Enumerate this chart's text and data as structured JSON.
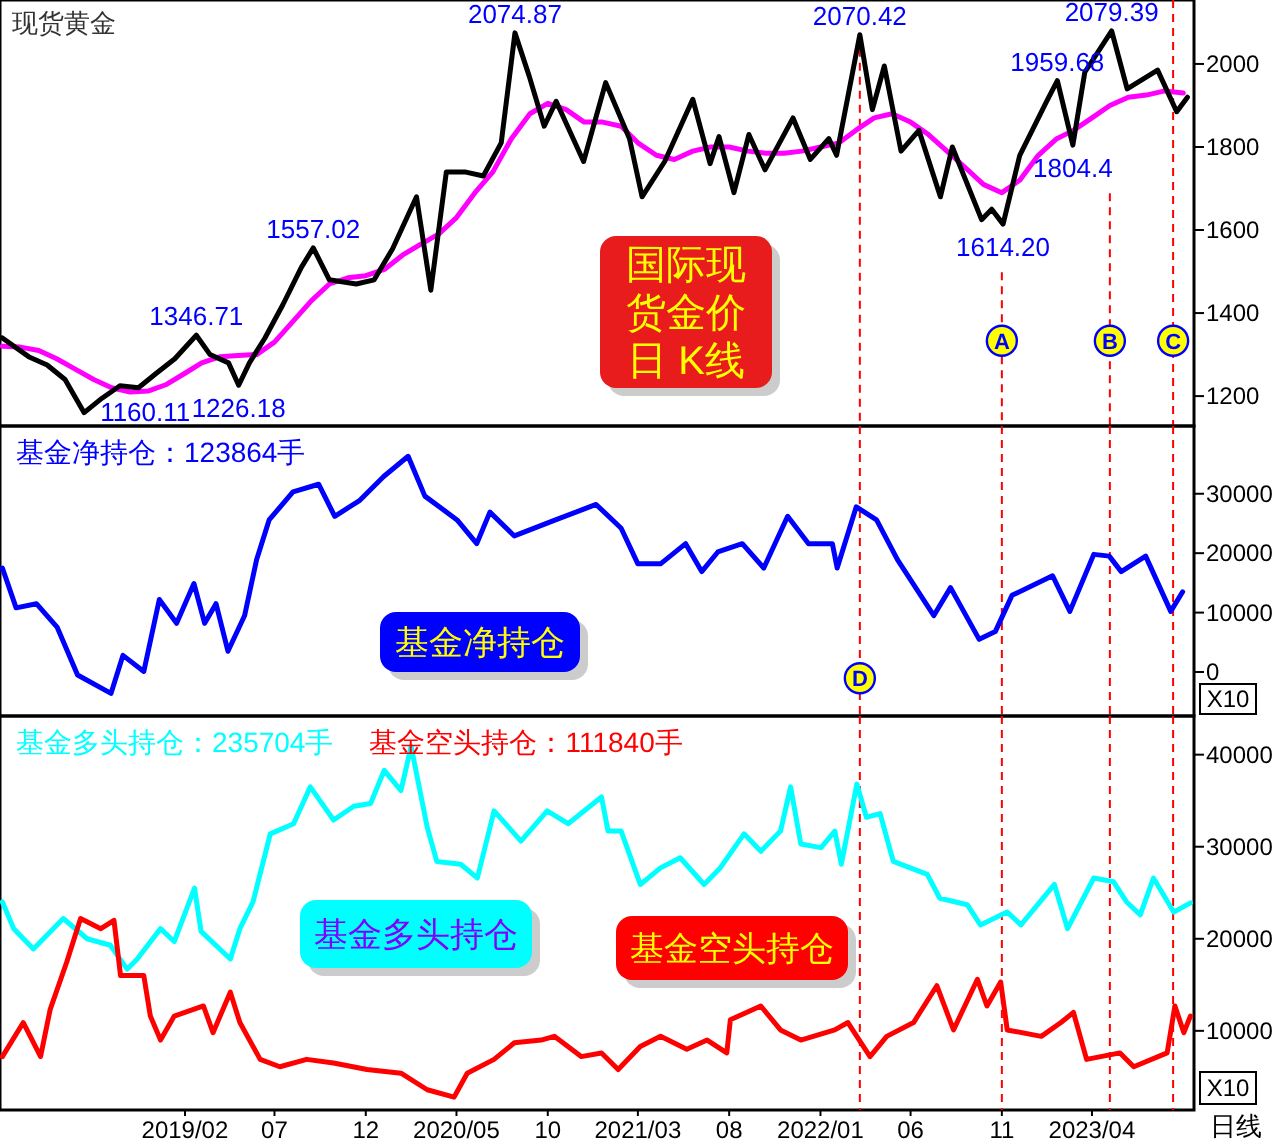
{
  "chart_data": [
    {
      "type": "line",
      "title": "现货黄金",
      "xlim": [
        "2018-03-28",
        "2023-09-19"
      ],
      "ylim": [
        1128,
        2154
      ],
      "yticks": [
        1200,
        1400,
        1600,
        1800,
        2000
      ],
      "tick_labels": "y",
      "marker": "none",
      "line_style": "solid",
      "series": [
        {
          "color": "#ff00ff",
          "x": [
            "2018-04",
            "2018-05",
            "2018-06",
            "2018-07",
            "2018-08",
            "2018-09",
            "2018-10",
            "2018-11",
            "2018-12",
            "2019-01",
            "2019-02",
            "2019-03",
            "2019-04",
            "2019-05",
            "2019-06",
            "2019-07",
            "2019-08",
            "2019-09",
            "2019-10",
            "2019-11",
            "2019-12",
            "2020-01",
            "2020-02",
            "2020-03",
            "2020-04",
            "2020-05",
            "2020-06",
            "2020-07",
            "2020-08",
            "2020-09",
            "2020-10",
            "2020-11",
            "2020-12",
            "2021-01",
            "2021-02",
            "2021-03",
            "2021-04",
            "2021-05",
            "2021-06",
            "2021-07",
            "2021-08",
            "2021-09",
            "2021-10",
            "2021-11",
            "2021-12",
            "2022-01",
            "2022-02",
            "2022-03",
            "2022-04",
            "2022-05",
            "2022-06",
            "2022-07",
            "2022-08",
            "2022-09",
            "2022-10",
            "2022-11",
            "2022-12",
            "2023-01",
            "2023-02",
            "2023-03",
            "2023-04",
            "2023-05",
            "2023-06",
            "2023-07",
            "2023-08",
            "2023-09"
          ],
          "values": [
            1320,
            1318,
            1310,
            1290,
            1265,
            1240,
            1220,
            1210,
            1212,
            1228,
            1255,
            1280,
            1295,
            1298,
            1300,
            1330,
            1380,
            1430,
            1470,
            1485,
            1490,
            1505,
            1540,
            1565,
            1590,
            1630,
            1690,
            1740,
            1820,
            1880,
            1905,
            1890,
            1860,
            1860,
            1850,
            1810,
            1780,
            1770,
            1790,
            1800,
            1800,
            1790,
            1785,
            1785,
            1790,
            1800,
            1810,
            1840,
            1870,
            1880,
            1860,
            1830,
            1790,
            1750,
            1710,
            1690,
            1720,
            1780,
            1820,
            1840,
            1870,
            1900,
            1920,
            1925,
            1935,
            1930
          ]
        },
        {
          "color": "#000000",
          "x": [
            "2018-04-01",
            "2018-05-15",
            "2018-06-15",
            "2018-07-15",
            "2018-08-16",
            "2018-09-15",
            "2018-10-15",
            "2018-11-15",
            "2018-12-15",
            "2019-01-15",
            "2019-02-20",
            "2019-03-15",
            "2019-04-15",
            "2019-05-02",
            "2019-05-20",
            "2019-06-15",
            "2019-07-15",
            "2019-08-15",
            "2019-09-04",
            "2019-10-01",
            "2019-11-15",
            "2019-12-15",
            "2020-01-15",
            "2020-02-24",
            "2020-03-19",
            "2020-04-14",
            "2020-05-15",
            "2020-06-15",
            "2020-07-15",
            "2020-08-07",
            "2020-08-31",
            "2020-09-25",
            "2020-10-15",
            "2020-11-30",
            "2021-01-06",
            "2021-02-15",
            "2021-03-08",
            "2021-04-15",
            "2021-06-01",
            "2021-06-30",
            "2021-07-15",
            "2021-08-09",
            "2021-09-03",
            "2021-09-30",
            "2021-11-16",
            "2021-12-15",
            "2022-01-15",
            "2022-01-28",
            "2022-03-08",
            "2022-03-29",
            "2022-04-18",
            "2022-05-16",
            "2022-06-15",
            "2022-07-21",
            "2022-08-10",
            "2022-09-28",
            "2022-10-15",
            "2022-11-03",
            "2022-12-01",
            "2023-01-15",
            "2023-02-02",
            "2023-02-28",
            "2023-03-20",
            "2023-05-04",
            "2023-05-30",
            "2023-07-20",
            "2023-08-21",
            "2023-09-08"
          ],
          "values": [
            1340,
            1295,
            1275,
            1240,
            1160.11,
            1195,
            1225,
            1220,
            1255,
            1290,
            1346.71,
            1300,
            1280,
            1226.18,
            1280,
            1340,
            1420,
            1510,
            1557.02,
            1480,
            1470,
            1480,
            1555,
            1680,
            1455,
            1740,
            1740,
            1730,
            1810,
            2074.87,
            1970,
            1850,
            1910,
            1765,
            1955,
            1820,
            1680,
            1765,
            1915,
            1760,
            1825,
            1690,
            1830,
            1745,
            1870,
            1770,
            1820,
            1780,
            2070.42,
            1890,
            1995,
            1790,
            1840,
            1680,
            1800,
            1625,
            1650,
            1614.2,
            1780,
            1910,
            1959.68,
            1804.4,
            1980,
            2079.39,
            1940,
            1985,
            1885,
            1920
          ]
        }
      ],
      "ref_lines": [
        {
          "axis": "x",
          "value": "2022-03-08",
          "color": "#ff0000",
          "line_style": "dashed"
        },
        {
          "axis": "x",
          "value": "2022-11-01",
          "label": "A",
          "color": "#ff0000",
          "line_style": "dashed"
        },
        {
          "axis": "x",
          "value": "2023-05-01",
          "label": "B",
          "color": "#ff0000",
          "line_style": "dashed"
        },
        {
          "axis": "x",
          "value": "2023-08-15",
          "label": "C",
          "color": "#ff0000",
          "line_style": "dashed"
        }
      ],
      "annotations": [
        {
          "text": "1160.11",
          "x": "2018-08-16",
          "y": 1160.11
        },
        {
          "text": "1346.71",
          "x": "2019-02-20",
          "y": 1346.71
        },
        {
          "text": "1226.18",
          "x": "2019-05-02",
          "y": 1226.18
        },
        {
          "text": "1557.02",
          "x": "2019-09-04",
          "y": 1557.02
        },
        {
          "text": "2074.87",
          "x": "2020-08-07",
          "y": 2074.87
        },
        {
          "text": "2070.42",
          "x": "2022-03-08",
          "y": 2070.42
        },
        {
          "text": "1614.20",
          "x": "2022-11-03",
          "y": 1614.2
        },
        {
          "text": "1959.68",
          "x": "2023-02-02",
          "y": 1959.68
        },
        {
          "text": "1804.4",
          "x": "2023-02-28",
          "y": 1804.4
        },
        {
          "text": "2079.39",
          "x": "2023-05-04",
          "y": 2079.39
        },
        "国际现货金价日 K线"
      ]
    },
    {
      "type": "line",
      "xlim": [
        "2018-03-28",
        "2023-09-19"
      ],
      "ylim": [
        -7400,
        41400
      ],
      "yticks": [
        0,
        10000,
        20000,
        30000
      ],
      "tick_labels": "y",
      "marker": "none",
      "line_style": "solid",
      "legend": "top left",
      "series": [
        {
          "name": "基金净持仓：123864手",
          "color": "#0000ff",
          "x": [
            "2018-04-01",
            "2018-04-24",
            "2018-05-28",
            "2018-07-02",
            "2018-08-05",
            "2018-09-30",
            "2018-10-20",
            "2018-11-24",
            "2018-12-20",
            "2019-01-18",
            "2019-02-16",
            "2019-03-06",
            "2019-03-25",
            "2019-04-14",
            "2019-05-12",
            "2019-06-01",
            "2019-06-22",
            "2019-08-01",
            "2019-09-13",
            "2019-10-10",
            "2019-11-21",
            "2019-12-31",
            "2020-02-10",
            "2020-03-09",
            "2020-05-02",
            "2020-06-04",
            "2020-06-26",
            "2020-08-06",
            "2020-10-14",
            "2020-12-21",
            "2021-02-01",
            "2021-03-01",
            "2021-04-08",
            "2021-05-20",
            "2021-06-16",
            "2021-07-13",
            "2021-08-23",
            "2021-09-28",
            "2021-11-07",
            "2021-12-12",
            "2022-01-21",
            "2022-01-29",
            "2022-03-02",
            "2022-04-05",
            "2022-05-10",
            "2022-07-10",
            "2022-08-07",
            "2022-09-24",
            "2022-10-21",
            "2022-11-18",
            "2023-01-25",
            "2023-02-23",
            "2023-04-04",
            "2023-04-30",
            "2023-05-20",
            "2023-06-30",
            "2023-08-11",
            "2023-08-31"
          ],
          "values": [
            17500,
            10800,
            11500,
            7500,
            -500,
            -3600,
            2800,
            100,
            12200,
            8200,
            14900,
            8200,
            11500,
            3500,
            9500,
            18900,
            25600,
            30300,
            31600,
            26200,
            28900,
            32900,
            36300,
            29600,
            25600,
            21600,
            26900,
            22900,
            25600,
            28200,
            24200,
            18200,
            18200,
            21600,
            16900,
            20200,
            21600,
            17500,
            26200,
            21600,
            21600,
            17500,
            27800,
            25600,
            18900,
            9500,
            14200,
            5500,
            6800,
            12900,
            16200,
            10200,
            19800,
            19500,
            16900,
            19500,
            10200,
            13500
          ]
        }
      ],
      "ref_lines": [
        {
          "axis": "x",
          "value": "2022-03-08",
          "label": "D",
          "color": "#ff0000",
          "line_style": "dashed"
        },
        {
          "axis": "x",
          "value": "2022-11-01",
          "color": "#ff0000",
          "line_style": "dashed"
        },
        {
          "axis": "x",
          "value": "2023-05-01",
          "color": "#ff0000",
          "line_style": "dashed"
        },
        {
          "axis": "x",
          "value": "2023-08-15",
          "color": "#ff0000",
          "line_style": "dashed"
        }
      ],
      "annotations": [
        "基金净持仓",
        "X10"
      ]
    },
    {
      "type": "line",
      "xlim": [
        "2018-03-28",
        "2023-09-19"
      ],
      "ylim": [
        1400,
        44200
      ],
      "yticks": [
        10000,
        20000,
        30000,
        40000
      ],
      "xticks": [
        {
          "value": "2019-02-01",
          "label": "2019/02"
        },
        {
          "value": "2019-07-01",
          "label": "07"
        },
        {
          "value": "2019-12-01",
          "label": "12"
        },
        {
          "value": "2020-05-01",
          "label": "2020/05"
        },
        {
          "value": "2020-10-01",
          "label": "10"
        },
        {
          "value": "2021-03-01",
          "label": "2021/03"
        },
        {
          "value": "2021-08-01",
          "label": "08"
        },
        {
          "value": "2022-01-01",
          "label": "2022/01"
        },
        {
          "value": "2022-06-01",
          "label": "06"
        },
        {
          "value": "2022-11-01",
          "label": "11"
        },
        {
          "value": "2023-04-01",
          "label": "2023/04"
        }
      ],
      "marker": "none",
      "line_style": "solid",
      "legend": "top left",
      "series": [
        {
          "name": "基金多头持仓：235704手",
          "color": "#00ffff",
          "x": [
            "2018-04-01",
            "2018-04-20",
            "2018-05-23",
            "2018-07-12",
            "2018-08-21",
            "2018-09-29",
            "2018-10-27",
            "2018-11-13",
            "2018-12-22",
            "2019-01-14",
            "2019-02-17",
            "2019-02-28",
            "2019-04-18",
            "2019-05-04",
            "2019-05-26",
            "2019-06-24",
            "2019-08-02",
            "2019-08-30",
            "2019-10-08",
            "2019-11-11",
            "2019-12-09",
            "2020-01-01",
            "2020-01-29",
            "2020-02-15",
            "2020-03-13",
            "2020-03-29",
            "2020-05-08",
            "2020-06-05",
            "2020-07-03",
            "2020-08-17",
            "2020-09-30",
            "2020-11-04",
            "2020-12-30",
            "2021-01-10",
            "2021-02-01",
            "2021-03-05",
            "2021-04-08",
            "2021-05-11",
            "2021-06-20",
            "2021-07-17",
            "2021-08-26",
            "2021-09-23",
            "2021-10-26",
            "2021-11-12",
            "2021-11-29",
            "2022-01-02",
            "2022-01-25",
            "2022-02-05",
            "2022-03-03",
            "2022-03-19",
            "2022-04-11",
            "2022-05-03",
            "2022-06-29",
            "2022-07-20",
            "2022-09-04",
            "2022-09-26",
            "2022-11-10",
            "2022-12-03",
            "2023-01-28",
            "2023-02-19",
            "2023-04-04",
            "2023-05-07",
            "2023-05-29",
            "2023-06-21",
            "2023-07-13",
            "2023-08-16",
            "2023-09-13"
          ],
          "values": [
            24000,
            21100,
            18900,
            22200,
            20000,
            19300,
            16700,
            17800,
            21100,
            19700,
            25500,
            20800,
            17800,
            21100,
            24000,
            31400,
            32500,
            36500,
            32900,
            34400,
            34700,
            38300,
            36100,
            40900,
            32100,
            28400,
            28100,
            26600,
            33900,
            30600,
            33900,
            32500,
            35400,
            31700,
            31700,
            25900,
            27700,
            28800,
            25900,
            27700,
            31400,
            29500,
            31700,
            36500,
            30300,
            29900,
            31700,
            28100,
            36800,
            33200,
            33600,
            28400,
            27000,
            24400,
            23700,
            21500,
            22900,
            21500,
            25900,
            21100,
            26600,
            26200,
            24000,
            22600,
            26600,
            22900,
            23900
          ]
        },
        {
          "name": "基金空头持仓：111840手",
          "color": "#ff0000",
          "x": [
            "2018-04-01",
            "2018-05-06",
            "2018-06-04",
            "2018-06-20",
            "2018-07-18",
            "2018-08-10",
            "2018-09-13",
            "2018-10-05",
            "2018-10-16",
            "2018-11-24",
            "2018-12-05",
            "2018-12-22",
            "2019-01-14",
            "2019-03-04",
            "2019-03-20",
            "2019-04-18",
            "2019-05-04",
            "2019-06-07",
            "2019-07-10",
            "2019-08-24",
            "2019-10-08",
            "2019-12-03",
            "2020-01-29",
            "2020-03-13",
            "2020-04-27",
            "2020-05-19",
            "2020-07-03",
            "2020-08-06",
            "2020-09-20",
            "2020-10-12",
            "2020-11-26",
            "2020-12-30",
            "2021-01-27",
            "2021-03-05",
            "2021-04-08",
            "2021-05-22",
            "2021-06-25",
            "2021-07-28",
            "2021-08-03",
            "2021-09-23",
            "2021-10-26",
            "2021-11-29",
            "2022-01-25",
            "2022-02-16",
            "2022-03-25",
            "2022-04-22",
            "2022-06-06",
            "2022-07-15",
            "2022-08-12",
            "2022-09-21",
            "2022-10-07",
            "2022-10-30",
            "2022-11-10",
            "2023-01-06",
            "2023-02-08",
            "2023-03-01",
            "2023-03-23",
            "2023-05-18",
            "2023-06-10",
            "2023-08-05",
            "2023-08-18",
            "2023-09-02",
            "2023-09-13"
          ],
          "values": [
            7200,
            10900,
            7200,
            12300,
            17500,
            22200,
            21100,
            22000,
            16000,
            16000,
            11600,
            9000,
            11600,
            12700,
            9800,
            14200,
            10900,
            6900,
            6100,
            6900,
            6500,
            5800,
            5400,
            3600,
            2800,
            5400,
            6900,
            8700,
            9000,
            9400,
            7200,
            7600,
            5800,
            8300,
            9400,
            8000,
            9000,
            7600,
            11200,
            12700,
            10100,
            9000,
            10100,
            10900,
            7200,
            9400,
            10900,
            14900,
            10100,
            15600,
            12700,
            15300,
            10100,
            9400,
            10900,
            12000,
            6900,
            7600,
            6100,
            7600,
            12700,
            9800,
            11600
          ]
        }
      ],
      "ref_lines": [
        {
          "axis": "x",
          "value": "2022-03-08",
          "color": "#ff0000",
          "line_style": "dashed"
        },
        {
          "axis": "x",
          "value": "2022-11-01",
          "color": "#ff0000",
          "line_style": "dashed"
        },
        {
          "axis": "x",
          "value": "2023-05-01",
          "color": "#ff0000",
          "line_style": "dashed"
        },
        {
          "axis": "x",
          "value": "2023-08-15",
          "color": "#ff0000",
          "line_style": "dashed"
        }
      ],
      "annotations": [
        "基金多头持仓",
        "基金空头持仓",
        "X10",
        "日线"
      ]
    }
  ]
}
